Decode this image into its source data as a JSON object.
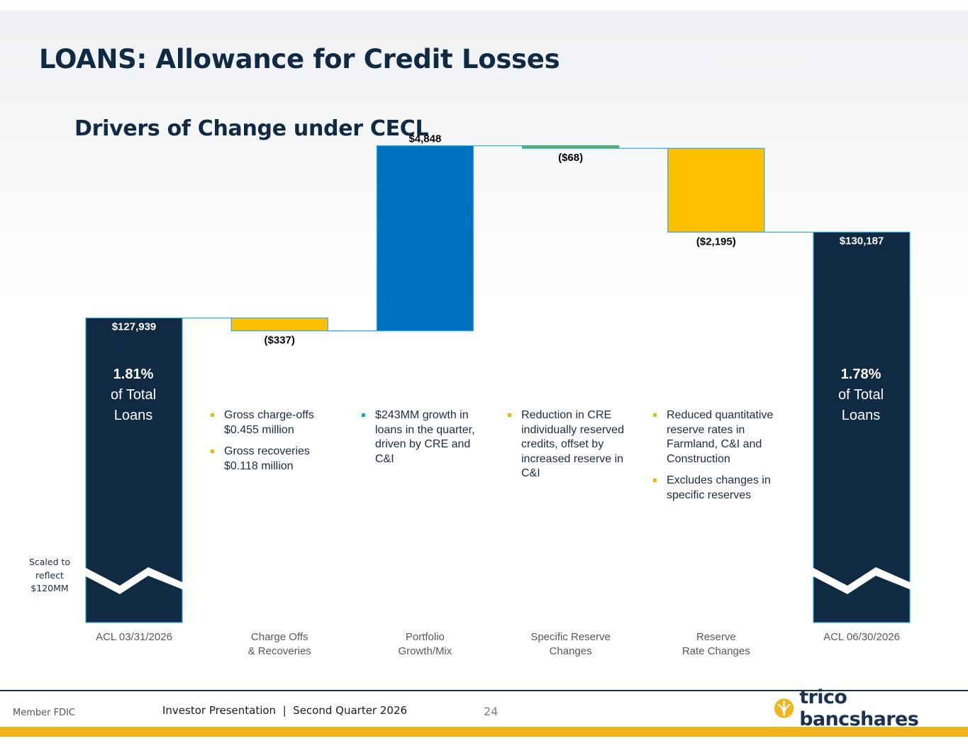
{
  "header": {
    "title": "LOANS: Allowance for Credit Losses",
    "subtitle": "Drivers of Change under CECL"
  },
  "chart_data": {
    "type": "bar",
    "subtype": "waterfall",
    "categories": [
      "ACL 03/31/2026",
      "Charge Offs & Recoveries",
      "Portfolio Growth/Mix",
      "Specific Reserve Changes",
      "Reserve Rate Changes",
      "ACL 06/30/2026"
    ],
    "category_lines": [
      [
        "ACL 03/31/2026"
      ],
      [
        "Charge Offs",
        "& Recoveries"
      ],
      [
        "Portfolio",
        "Growth/Mix"
      ],
      [
        "Specific Reserve",
        "Changes"
      ],
      [
        "Reserve",
        "Rate Changes"
      ],
      [
        "ACL 06/30/2026"
      ]
    ],
    "values": [
      127939,
      -337,
      4848,
      -68,
      -2195,
      130187
    ],
    "kinds": [
      "total",
      "delta",
      "delta",
      "delta",
      "delta",
      "total"
    ],
    "value_labels": [
      "$127,939",
      "($337)",
      "$4,848",
      "($68)",
      "($2,195)",
      "$130,187"
    ],
    "colors": {
      "total": "#112a44",
      "increase": "#0070c0",
      "decrease": "#ffc000",
      "specific_decrease": "#70ad47",
      "outline": "#2fa8dc"
    },
    "axis_break": true,
    "yscale_note": "Scaled to reflect $120MM"
  },
  "callouts": {
    "start_pct": {
      "value": "1.81%",
      "line1": "of Total",
      "line2": "Loans"
    },
    "end_pct": {
      "value": "1.78%",
      "line1": "of Total",
      "line2": "Loans"
    },
    "scaled_note": [
      "Scaled to",
      "reflect",
      "$120MM"
    ]
  },
  "notes": {
    "charge_offs": [
      "Gross charge-offs $0.455 million",
      "Gross recoveries $0.118 million"
    ],
    "portfolio": [
      "$243MM growth in loans in the quarter, driven by CRE and C&I"
    ],
    "specific": [
      "Reduction in CRE individually reserved credits, offset by increased reserve in C&I"
    ],
    "reserve_rate": [
      "Reduced quantitative reserve rates in Farmland, C&I and Construction",
      "Excludes changes in specific reserves"
    ]
  },
  "footer": {
    "fdic": "Member FDIC",
    "presentation": "Investor Presentation  |  Second Quarter 2026",
    "page_number": "24",
    "logo_text": "trico bancshares",
    "logo_icon": "trico-logo-icon"
  }
}
